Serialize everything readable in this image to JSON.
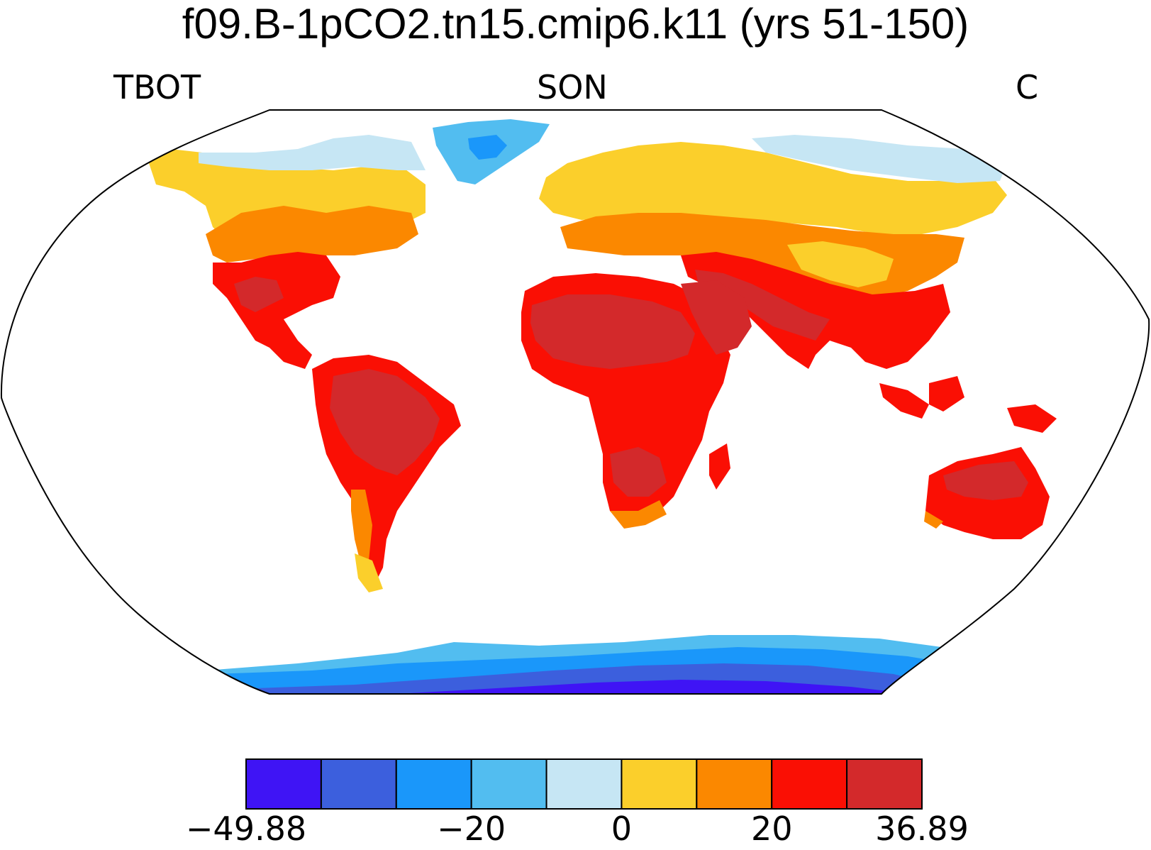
{
  "title": "f09.B-1pCO2.tn15.cmip6.k11 (yrs 51-150)",
  "left_label": "TBOT",
  "center_label": "SON",
  "right_label": "C",
  "colorbar": {
    "colors": [
      "#3f14f5",
      "#3c5fdd",
      "#1a97fa",
      "#52bdf0",
      "#c6e6f4",
      "#fbcf2b",
      "#fb8800",
      "#fa0f04",
      "#d3292b"
    ],
    "tick_labels": [
      "−49.88",
      "−20",
      "0",
      "20",
      "36.89"
    ],
    "tick_values": [
      -49.88,
      -20,
      0,
      20,
      36.89
    ],
    "range": [
      -49.88,
      36.89
    ]
  },
  "map": {
    "projection": "Robinson",
    "variable": "TBOT",
    "season": "SON",
    "units": "C"
  }
}
